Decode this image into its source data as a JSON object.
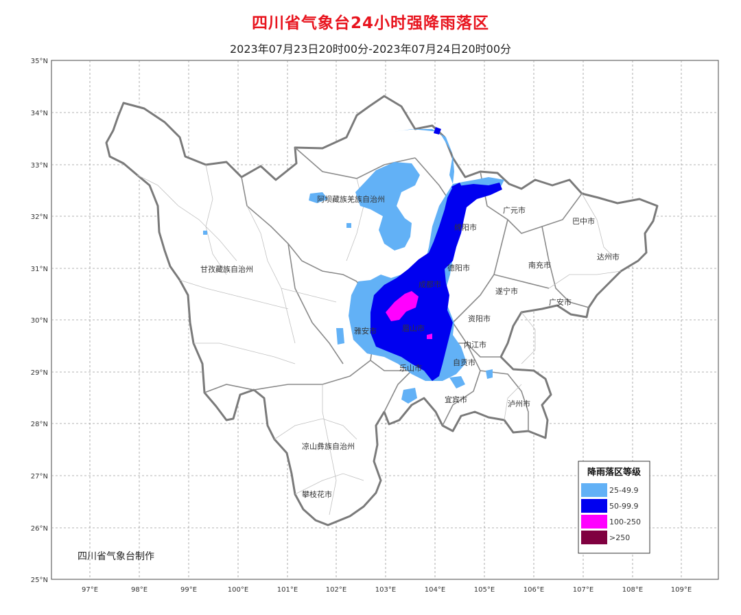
{
  "map": {
    "title": "四川省气象台24小时强降雨落区",
    "subtitle": "2023年07月23日20时00分-2023年07月24日20时00分",
    "producer": "四川省气象台制作",
    "lat_labels": [
      "35°N",
      "34°N",
      "33°N",
      "32°N",
      "31°N",
      "30°N",
      "29°N",
      "28°N",
      "27°N",
      "26°N",
      "25°N"
    ],
    "lon_labels": [
      "97°E",
      "98°E",
      "99°E",
      "100°E",
      "101°E",
      "102°E",
      "103°E",
      "104°E",
      "105°E",
      "106°E",
      "107°E",
      "108°E",
      "109°E"
    ],
    "region_labels": [
      "阿坝藏族羌族自治州",
      "甘孜藏族自治州",
      "凉山彝族自治州",
      "攀枝花市",
      "广元市",
      "巴中市",
      "达州市",
      "南充市",
      "绵阳市",
      "德阳市",
      "遂宁市",
      "广安市",
      "成都市",
      "资阳市",
      "雅安市",
      "眉山市",
      "内江市",
      "乐山市",
      "自贡市",
      "宜宾市",
      "泸州市"
    ],
    "legend": {
      "title": "降雨落区等级",
      "items": [
        {
          "label": "25-49.9",
          "color": "#62b1f6"
        },
        {
          "label": "50-99.9",
          "color": "#0000f0"
        },
        {
          "label": "100-250",
          "color": "#ff00ff"
        },
        {
          "label": ">250",
          "color": "#800040"
        }
      ]
    },
    "colors": {
      "title": "#e8141e",
      "province_border": "#7a7a7a",
      "county_border": "#b4b4b4"
    }
  }
}
